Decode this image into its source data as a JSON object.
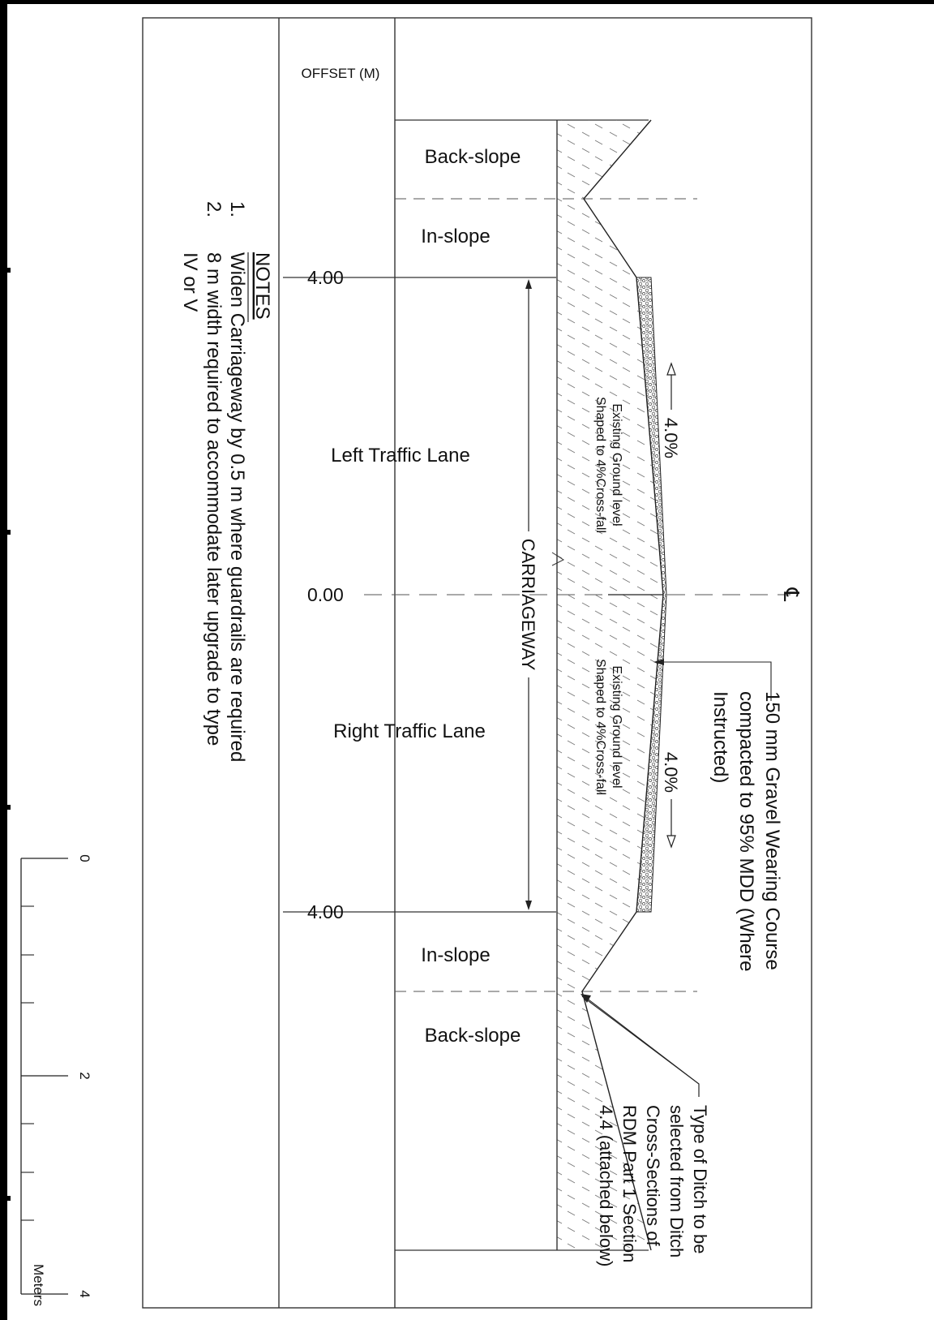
{
  "drawing": {
    "offset_header": "OFFSET (M)",
    "offsets": {
      "top": "4.00",
      "center": "0.00",
      "bottom": "4.00"
    },
    "zones": {
      "backslope_top": "Back-slope",
      "inslope_top": "In-slope",
      "left_lane": "Left Traffic Lane",
      "right_lane": "Right Traffic Lane",
      "inslope_bottom": "In-slope",
      "backslope_bottom": "Back-slope"
    },
    "carriageway_label": "CARRIAGEWAY",
    "existing_ground": {
      "line1": "Existing Ground level",
      "line2": "Shaped to 4%Cross-fall"
    },
    "crossfall_top": "4.0%",
    "crossfall_bottom": "4.0%",
    "centerline_symbol": "℄",
    "wearing_course_note": [
      "150 mm Gravel Wearing Course",
      "compacted to 95% MDD (Where",
      "Instructed)"
    ],
    "ditch_note": [
      "Type of Ditch to be",
      "selected from Ditch",
      "Cross-Sections of",
      "RDM Part 1 Section",
      "4.4 (attached below)"
    ]
  },
  "notes": {
    "title": "NOTES",
    "items": [
      {
        "num": "1.",
        "lines": [
          "Widen Carriageway by 0.5 m where guardrails are required"
        ]
      },
      {
        "num": "2.",
        "lines": [
          "8 m width required to accommodate later upgrade to type",
          "IV or V"
        ]
      }
    ]
  },
  "scale_bar": {
    "ticks": [
      "0",
      "2",
      "4"
    ],
    "unit": "Meters"
  }
}
